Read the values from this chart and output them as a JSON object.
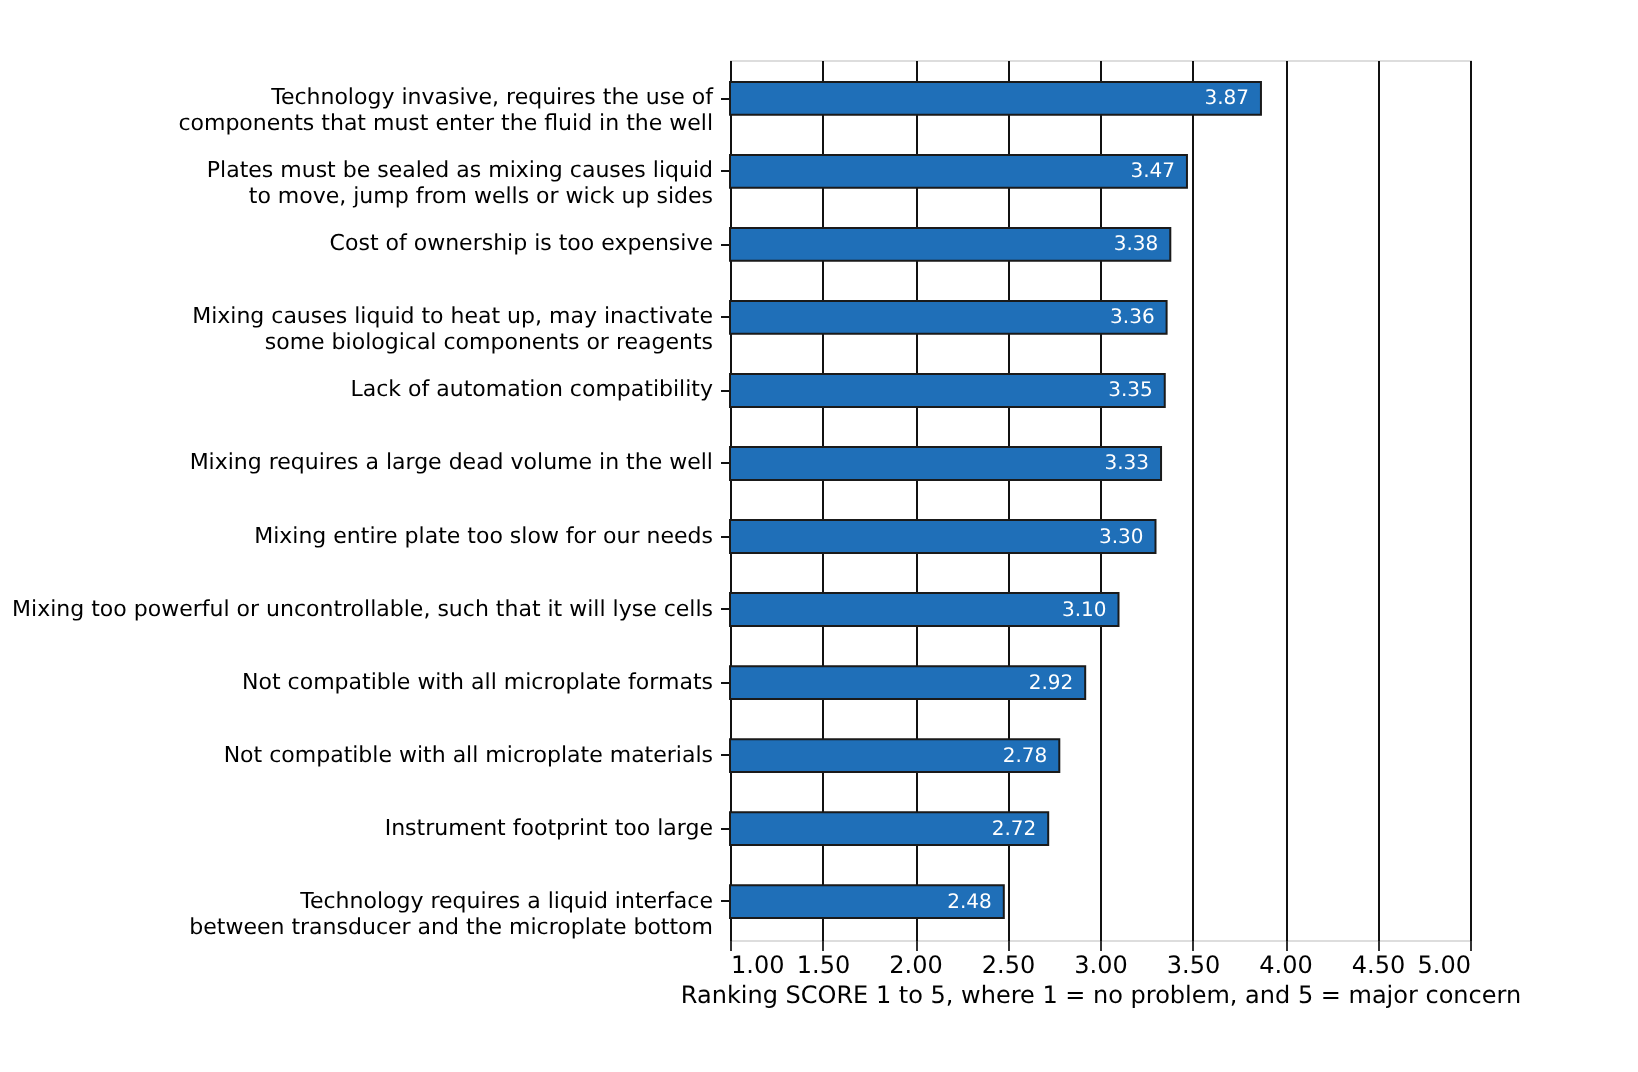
{
  "chart_data": {
    "type": "bar",
    "orientation": "horizontal",
    "categories": [
      "Technology invasive, requires the use of components that must enter the fluid in the well",
      "Plates must be sealed as mixing causes liquid to move, jump from wells or wick up sides",
      "Cost of ownership is too expensive",
      "Mixing causes liquid to heat up, may inactivate some biological components or reagents",
      "Lack of automation compatibility",
      "Mixing requires a large dead volume in the well",
      "Mixing entire plate too slow for our needs",
      "Mixing too powerful or uncontrollable, such that it will lyse cells",
      "Not compatible with all microplate formats",
      "Not compatible with all microplate materials",
      "Instrument footprint too large",
      "Technology requires a liquid interface between transducer and the microplate bottom"
    ],
    "values": [
      3.87,
      3.47,
      3.38,
      3.36,
      3.35,
      3.33,
      3.3,
      3.1,
      2.92,
      2.78,
      2.72,
      2.48
    ],
    "color": "#1f6fb8",
    "value_labels": [
      "3.87",
      "3.47",
      "3.38",
      "3.36",
      "3.35",
      "3.33",
      "3.30",
      "3.10",
      "2.92",
      "2.78",
      "2.72",
      "2.48"
    ],
    "xlim": [
      1,
      5
    ],
    "xticks": [
      {
        "value": 1,
        "label": "1.00"
      },
      {
        "value": 1.5,
        "label": "1.50"
      },
      {
        "value": 2,
        "label": "2.00"
      },
      {
        "value": 2.5,
        "label": "2.50"
      },
      {
        "value": 3,
        "label": "3.00"
      },
      {
        "value": 3.5,
        "label": "3.50"
      },
      {
        "value": 4,
        "label": "4.00"
      },
      {
        "value": 4.5,
        "label": "4.50"
      },
      {
        "value": 5,
        "label": "5.00"
      }
    ],
    "xlabel": "Ranking SCORE 1 to 5, where 1 = no problem, and 5 = major concern",
    "grid": "x"
  }
}
